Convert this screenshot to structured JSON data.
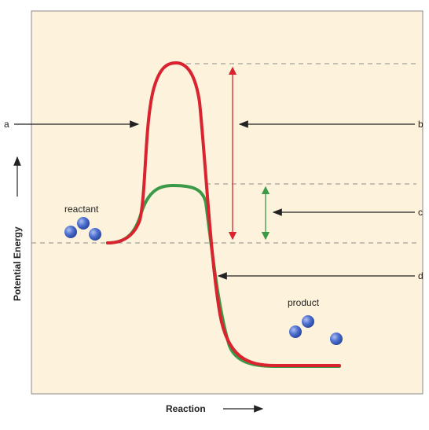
{
  "axes": {
    "x_label": "Reaction",
    "y_label": "Potential Energy"
  },
  "labels": {
    "a": "a",
    "b": "b",
    "c": "c",
    "d": "d",
    "reactant": "reactant",
    "product": "product"
  },
  "colors": {
    "background_panel": "#fdf2dc",
    "uncatalyzed_curve": "#d9232e",
    "catalyzed_curve": "#3a9a47",
    "molecule_fill": "#4b6fd0",
    "arrow": "#222222",
    "dashed_guide": "#8a8a8a"
  }
}
